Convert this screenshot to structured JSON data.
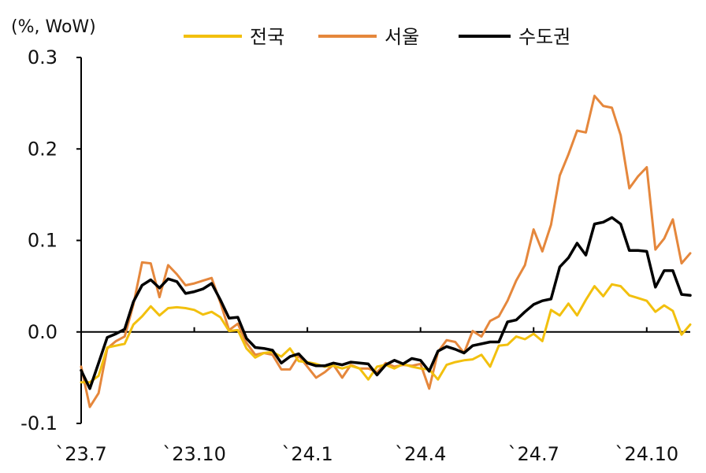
{
  "chart_data": {
    "type": "line",
    "unit_label": "(%, WoW)",
    "x_tick_labels": [
      "`23.7",
      "`23.10",
      "`24.1",
      "`24.4",
      "`24.7",
      "`24.10"
    ],
    "y_tick_labels": [
      "0.3",
      "0.2",
      "0.1",
      "0.0",
      "-0.1"
    ],
    "ylim": [
      -0.1,
      0.3
    ],
    "y_ticks": [
      0.3,
      0.2,
      0.1,
      0.0,
      -0.1
    ],
    "x_tick_index": [
      0,
      13,
      26,
      39,
      52,
      65
    ],
    "series": [
      {
        "name": "전국",
        "color": "#F2C00E",
        "values": [
          -0.055,
          -0.055,
          -0.048,
          -0.017,
          -0.015,
          -0.013,
          0.008,
          0.017,
          0.028,
          0.018,
          0.026,
          0.027,
          0.026,
          0.024,
          0.019,
          0.022,
          0.016,
          0.001,
          0.002,
          -0.018,
          -0.028,
          -0.023,
          -0.022,
          -0.027,
          -0.018,
          -0.032,
          -0.033,
          -0.035,
          -0.038,
          -0.037,
          -0.04,
          -0.037,
          -0.04,
          -0.052,
          -0.038,
          -0.036,
          -0.04,
          -0.035,
          -0.038,
          -0.04,
          -0.041,
          -0.052,
          -0.036,
          -0.033,
          -0.031,
          -0.03,
          -0.025,
          -0.038,
          -0.015,
          -0.014,
          -0.005,
          -0.008,
          -0.002,
          -0.01,
          0.024,
          0.018,
          0.031,
          0.018,
          0.035,
          0.05,
          0.039,
          0.052,
          0.05,
          0.04,
          0.037,
          0.034,
          0.022,
          0.029,
          0.023,
          -0.003,
          0.008
        ]
      },
      {
        "name": "서울",
        "color": "#E5873C",
        "values": [
          -0.038,
          -0.082,
          -0.067,
          -0.018,
          -0.01,
          -0.005,
          0.03,
          0.076,
          0.075,
          0.038,
          0.073,
          0.063,
          0.051,
          0.053,
          0.056,
          0.059,
          0.032,
          0.002,
          0.009,
          -0.012,
          -0.025,
          -0.023,
          -0.025,
          -0.041,
          -0.041,
          -0.026,
          -0.038,
          -0.05,
          -0.044,
          -0.036,
          -0.05,
          -0.036,
          -0.04,
          -0.04,
          -0.044,
          -0.034,
          -0.038,
          -0.036,
          -0.037,
          -0.035,
          -0.062,
          -0.022,
          -0.009,
          -0.011,
          -0.023,
          0.001,
          -0.005,
          0.012,
          0.017,
          0.034,
          0.056,
          0.073,
          0.112,
          0.088,
          0.117,
          0.171,
          0.194,
          0.22,
          0.218,
          0.258,
          0.247,
          0.245,
          0.215,
          0.157,
          0.17,
          0.18,
          0.09,
          0.102,
          0.123,
          0.075,
          0.086
        ]
      },
      {
        "name": "수도권",
        "color": "#000000",
        "values": [
          -0.042,
          -0.062,
          -0.034,
          -0.006,
          -0.002,
          0.003,
          0.033,
          0.051,
          0.057,
          0.048,
          0.058,
          0.055,
          0.042,
          0.044,
          0.047,
          0.053,
          0.035,
          0.015,
          0.016,
          -0.007,
          -0.017,
          -0.018,
          -0.02,
          -0.034,
          -0.027,
          -0.024,
          -0.034,
          -0.037,
          -0.037,
          -0.034,
          -0.036,
          -0.033,
          -0.034,
          -0.035,
          -0.047,
          -0.036,
          -0.031,
          -0.035,
          -0.029,
          -0.031,
          -0.043,
          -0.021,
          -0.016,
          -0.019,
          -0.023,
          -0.015,
          -0.013,
          -0.011,
          -0.011,
          0.011,
          0.013,
          0.022,
          0.03,
          0.034,
          0.036,
          0.071,
          0.081,
          0.097,
          0.084,
          0.118,
          0.12,
          0.125,
          0.118,
          0.089,
          0.089,
          0.088,
          0.049,
          0.067,
          0.067,
          0.041,
          0.04
        ]
      }
    ]
  }
}
